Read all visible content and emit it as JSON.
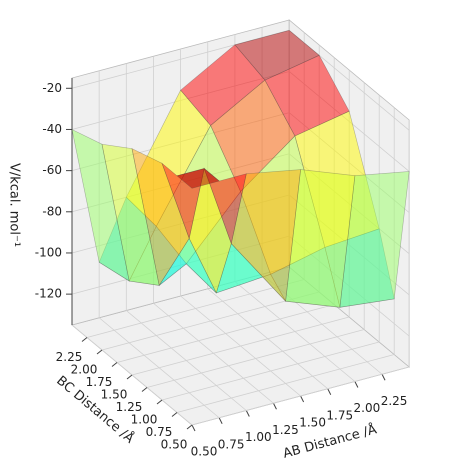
{
  "chart_data": {
    "type": "surface",
    "xlabel": "AB Distance /Å",
    "ylabel": "BC Distance /Å",
    "zlabel": "V/kcal. mol⁻¹",
    "x": [
      0.5,
      0.75,
      1.0,
      1.5,
      2.0,
      2.5
    ],
    "y": [
      0.5,
      0.75,
      1.0,
      1.5,
      2.0,
      2.5
    ],
    "z": [
      [
        -20,
        -20,
        -20,
        -25,
        -35,
        -40
      ],
      [
        -20,
        -20,
        -60,
        -95,
        -105,
        -108
      ],
      [
        -20,
        -60,
        -90,
        -88,
        -82,
        -80
      ],
      [
        -25,
        -95,
        -88,
        -60,
        -40,
        -35
      ],
      [
        -35,
        -105,
        -82,
        -40,
        -25,
        -20
      ],
      [
        -40,
        -108,
        -80,
        -35,
        -20,
        -20
      ]
    ],
    "colormap": "jet",
    "xlim": [
      0.5,
      2.5
    ],
    "ylim": [
      0.5,
      2.5
    ],
    "zlim": [
      -135,
      -15
    ],
    "xticks": [
      {
        "value": 0.5,
        "label": "0.50"
      },
      0.75,
      {
        "value": 1.0,
        "label": "1.00"
      },
      1.25,
      {
        "value": 1.5,
        "label": "1.50"
      },
      1.75,
      {
        "value": 2.0,
        "label": "2.00"
      },
      2.25
    ],
    "yticks": [
      {
        "value": 0.5,
        "label": "0.50"
      },
      0.75,
      {
        "value": 1.0,
        "label": "1.00"
      },
      1.25,
      {
        "value": 1.5,
        "label": "1.50"
      },
      1.75,
      {
        "value": 2.0,
        "label": "2.00"
      },
      2.25
    ],
    "zticks": [
      -120,
      -100,
      -80,
      -60,
      -40,
      -20
    ],
    "grid": true
  }
}
